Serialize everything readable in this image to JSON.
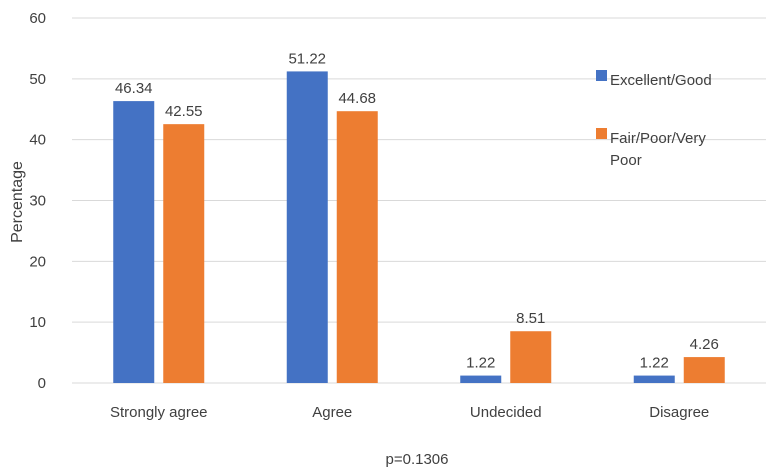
{
  "chart_data": {
    "type": "bar",
    "categories": [
      "Strongly agree",
      "Agree",
      "Undecided",
      "Disagree"
    ],
    "series": [
      {
        "name": "Excellent/Good",
        "values": [
          46.34,
          51.22,
          1.22,
          1.22
        ],
        "labels": [
          "46.34",
          "51.22",
          "1.22",
          "1.22"
        ],
        "color": "#4472C4"
      },
      {
        "name": "Fair/Poor/Very Poor",
        "values": [
          42.55,
          44.68,
          8.51,
          4.26
        ],
        "labels": [
          "42.55",
          "44.68",
          "8.51",
          "4.26"
        ],
        "color": "#ED7D31"
      }
    ],
    "ylabel": "Percentage",
    "xlabel": "",
    "ylim": [
      0,
      60
    ],
    "yticks": [
      0,
      10,
      20,
      30,
      40,
      50,
      60
    ],
    "grid": true,
    "legend_position": "right",
    "note": "p=0.1306"
  }
}
